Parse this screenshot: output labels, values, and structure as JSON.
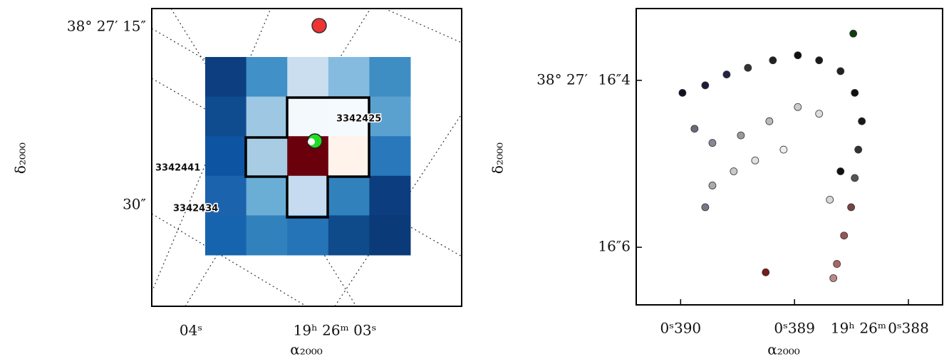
{
  "chart_data": [
    {
      "type": "image",
      "x_label": "α₂₀₀₀",
      "y_label": "δ₂₀₀₀",
      "x_tick_labels": [
        "04ˢ",
        "19ʰ 26ᵐ 03ˢ"
      ],
      "y_tick_labels": [
        "38°  27′  15″",
        "30″"
      ],
      "pixels": [
        [
          "#0d3f80",
          "#4190c8",
          "#cadef0",
          "#86bbe0",
          "#3e8ec4"
        ],
        [
          "#0f4b8f",
          "#9dc7e3",
          "#f4f9fe",
          "#f5fafe",
          "#5ba1d0"
        ],
        [
          "#0d55a2",
          "#a7cce4",
          "#6b000d",
          "#fff3ec",
          "#2a78bc"
        ],
        [
          "#1b63ad",
          "#6aaed6",
          "#c6dbef",
          "#3181bd",
          "#0c3d7e"
        ],
        [
          "#1664ae",
          "#3181bd",
          "#2474b7",
          "#0f4a8b",
          "#0a3a77"
        ]
      ],
      "annotations": [
        "3342425",
        "3342441",
        "3342434"
      ]
    },
    {
      "type": "scatter",
      "x_label": "α₂₀₀₀",
      "y_label": "δ₂₀₀₀",
      "x_hour_label": "19ʰ  26ᵐ",
      "y_prefix_label": "38°  27′",
      "xlim": [
        390.39,
        387.7
      ],
      "ylim": [
        16.669,
        16.314
      ],
      "xticks": [
        {
          "value": 390,
          "label": "0ˢ390"
        },
        {
          "value": 389,
          "label": "0ˢ389"
        },
        {
          "value": 388,
          "label": "0ˢ388"
        }
      ],
      "yticks": [
        {
          "value": 16.4,
          "label": "16″4"
        },
        {
          "value": 16.6,
          "label": "16″6"
        }
      ],
      "x": [
        389.984,
        389.784,
        389.596,
        389.409,
        389.19,
        388.971,
        388.784,
        388.596,
        388.471,
        388.409,
        388.44,
        388.471,
        388.503,
        388.565,
        388.628,
        388.659,
        389.878,
        389.721,
        389.471,
        389.221,
        388.971,
        388.784,
        389.721,
        389.534,
        389.346,
        389.096,
        389.784,
        388.69,
        388.596,
        389.253,
        388.484
      ],
      "y": [
        16.415,
        16.406,
        16.393,
        16.385,
        16.376,
        16.37,
        16.376,
        16.389,
        16.415,
        16.449,
        16.483,
        16.517,
        16.552,
        16.586,
        16.62,
        16.637,
        16.458,
        16.475,
        16.466,
        16.449,
        16.432,
        16.44,
        16.526,
        16.509,
        16.496,
        16.483,
        16.552,
        16.543,
        16.509,
        16.63,
        16.344
      ],
      "colors": [
        "#111122",
        "#1a1a3a",
        "#22224a",
        "#333333",
        "#222222",
        "#111111",
        "#1a1a1a",
        "#222222",
        "#111111",
        "#181818",
        "#333333",
        "#555555",
        "#774444",
        "#995555",
        "#aa6666",
        "#bb8888",
        "#6a6a7a",
        "#888899",
        "#999999",
        "#bbbbbb",
        "#cccccc",
        "#dddddd",
        "#aaaaaa",
        "#c8c8c8",
        "#e0e0e0",
        "#eeeeee",
        "#777788",
        "#d8d8d8",
        "#111111",
        "#7a1a1a",
        "#0d3d0d"
      ]
    }
  ]
}
